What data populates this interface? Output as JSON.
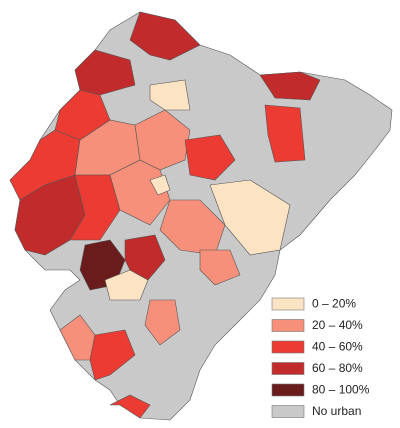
{
  "legend": {
    "items": [
      {
        "label": "0 – 20%",
        "color": "#fbe3c3"
      },
      {
        "label": "20 – 40%",
        "color": "#f7907a"
      },
      {
        "label": "40 – 60%",
        "color": "#ec3b32"
      },
      {
        "label": "60 – 80%",
        "color": "#c22b2b"
      },
      {
        "label": "80 – 100%",
        "color": "#6a1c1c"
      },
      {
        "label": "No urban",
        "color": "#c9c9c9"
      }
    ]
  }
}
